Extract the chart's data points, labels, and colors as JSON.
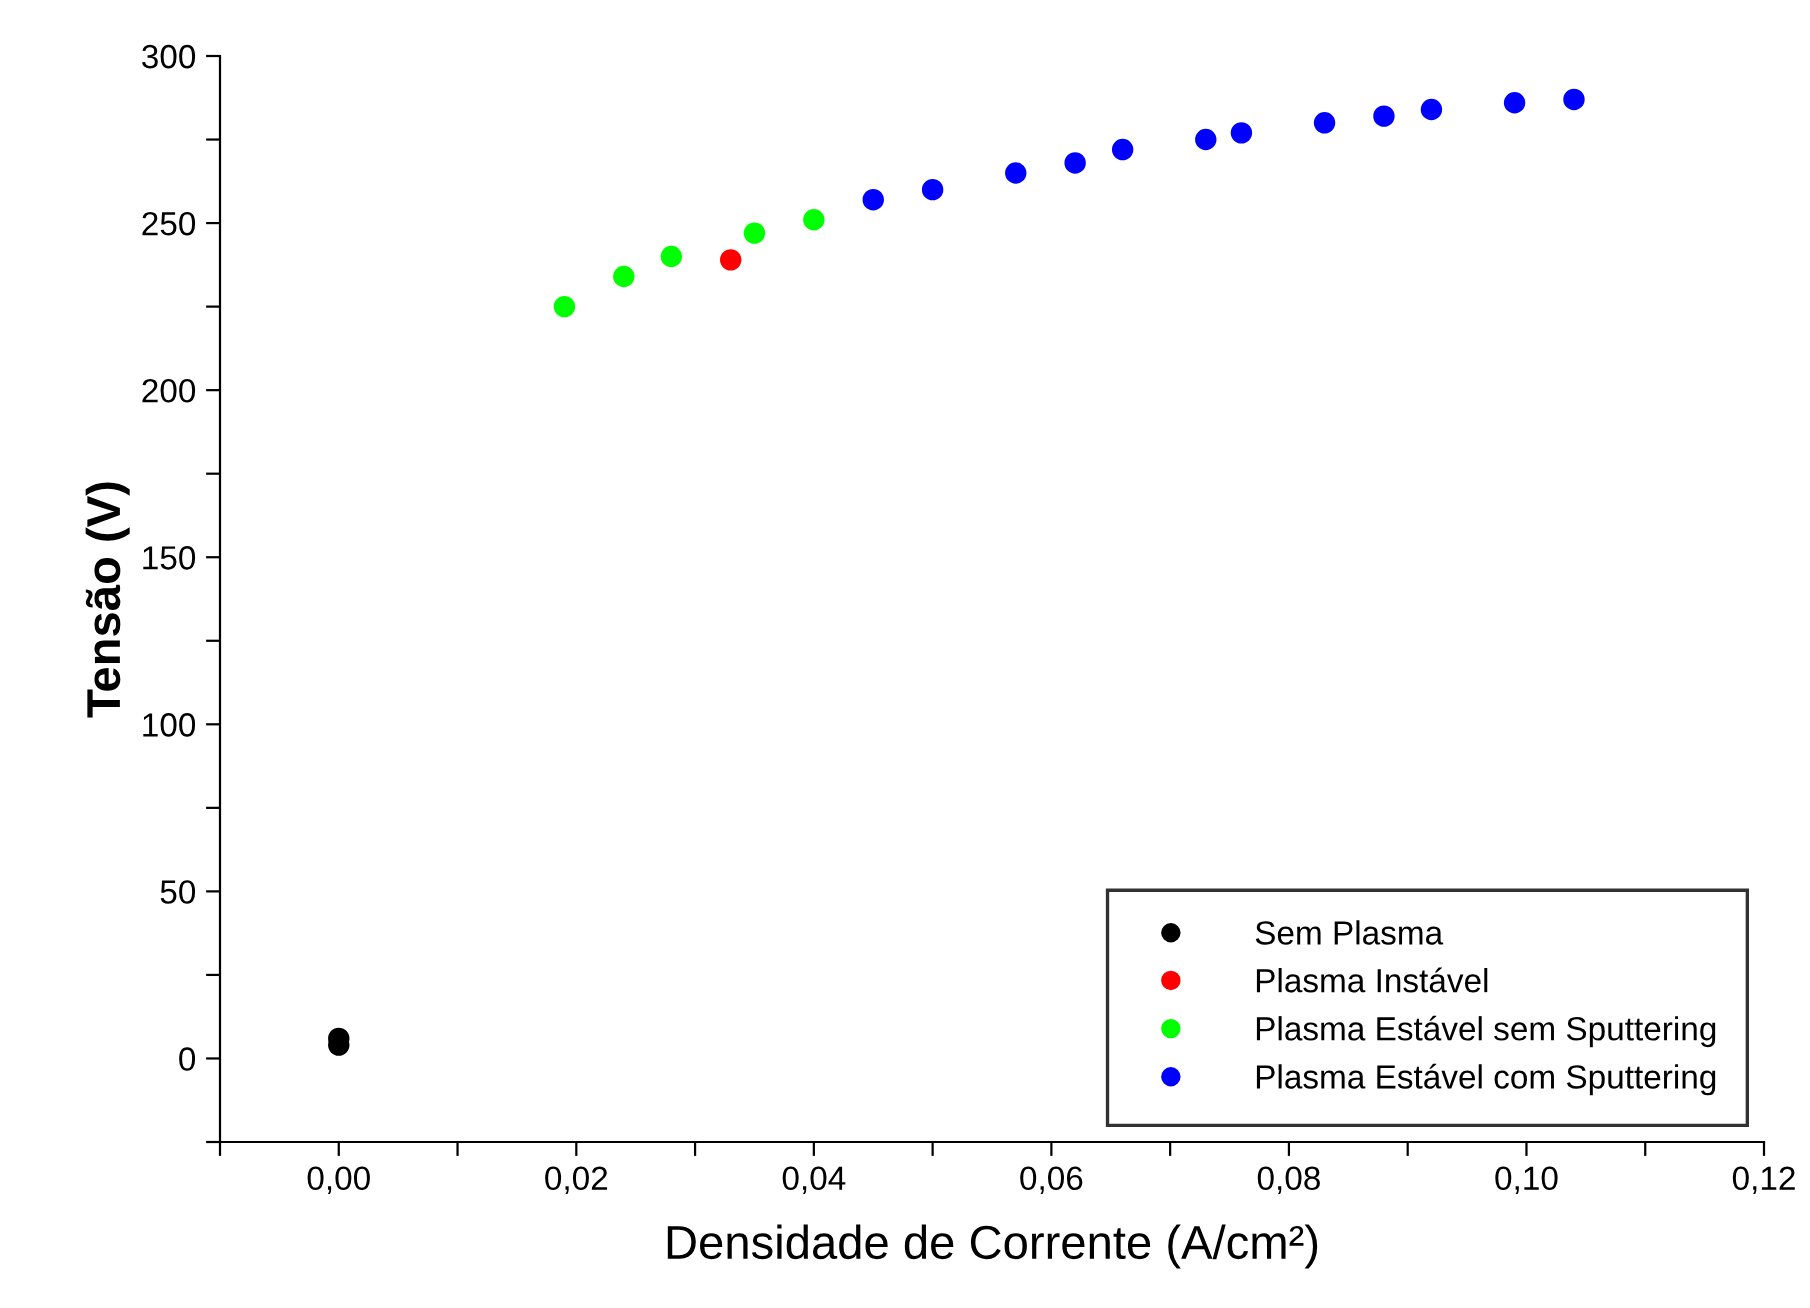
{
  "chart_data": {
    "type": "scatter",
    "xlabel": "Densidade de Corrente (A/cm²)",
    "ylabel": "Tensão (V)",
    "marker": "circle",
    "legend": "bottom right",
    "grid": false,
    "xlim": [
      -0.01,
      0.12
    ],
    "ylim": [
      -25,
      300
    ],
    "xticks": [
      {
        "value": -0.01,
        "label": null
      },
      {
        "value": 0,
        "label": "0,00"
      },
      {
        "value": 0.01,
        "label": null
      },
      {
        "value": 0.02,
        "label": "0,02"
      },
      {
        "value": 0.03,
        "label": null
      },
      {
        "value": 0.04,
        "label": "0,04"
      },
      {
        "value": 0.05,
        "label": null
      },
      {
        "value": 0.06,
        "label": "0,06"
      },
      {
        "value": 0.07,
        "label": null
      },
      {
        "value": 0.08,
        "label": "0,08"
      },
      {
        "value": 0.09,
        "label": null
      },
      {
        "value": 0.1,
        "label": "0,10"
      },
      {
        "value": 0.11,
        "label": null
      },
      {
        "value": 0.12,
        "label": "0,12"
      }
    ],
    "yticks": [
      {
        "value": -25,
        "label": null
      },
      0,
      {
        "value": 25,
        "label": null
      },
      50,
      {
        "value": 75,
        "label": null
      },
      100,
      {
        "value": 125,
        "label": null
      },
      150,
      {
        "value": 175,
        "label": null
      },
      200,
      {
        "value": 225,
        "label": null
      },
      250,
      {
        "value": 275,
        "label": null
      },
      300
    ],
    "series": [
      {
        "name": "Sem Plasma",
        "color": "#000000",
        "x": [
          0,
          0
        ],
        "values": [
          6,
          4
        ]
      },
      {
        "name": "Plasma Instável",
        "color": "#ff0000",
        "x": [
          0.033
        ],
        "values": [
          239
        ]
      },
      {
        "name": "Plasma Estável sem Sputtering",
        "color": "#00ff00",
        "x": [
          0.019,
          0.024,
          0.028,
          0.035,
          0.04
        ],
        "values": [
          225,
          234,
          240,
          247,
          251
        ]
      },
      {
        "name": "Plasma Estável com Sputtering",
        "color": "#0000ff",
        "x": [
          0.045,
          0.05,
          0.057,
          0.062,
          0.066,
          0.073,
          0.076,
          0.083,
          0.088,
          0.092,
          0.099,
          0.104
        ],
        "values": [
          257,
          260,
          265,
          268,
          272,
          275,
          277,
          280,
          282,
          284,
          286,
          287
        ]
      }
    ]
  }
}
